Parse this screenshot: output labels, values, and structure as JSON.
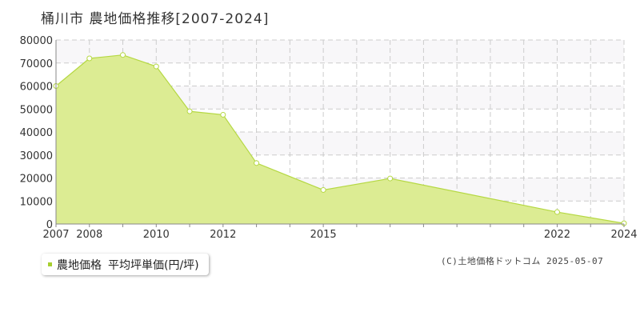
{
  "title": "桶川市 農地価格推移[2007-2024]",
  "legend": {
    "series_label": "農地価格",
    "unit_label": "平均坪単価(円/坪)"
  },
  "copyright": "(C)土地価格ドットコム 2025-05-07",
  "colors": {
    "fill": "#dcec93",
    "line": "#b5d843",
    "grid": "#cccccc",
    "band": "#f8f7f9",
    "marker": "#a6cf2f"
  },
  "chart_data": {
    "type": "area",
    "title": "桶川市 農地価格推移[2007-2024]",
    "xlabel": "",
    "ylabel": "",
    "xlim": [
      2007,
      2024
    ],
    "ylim": [
      0,
      80000
    ],
    "x_tick_labels": [
      "2007",
      "2008",
      "2010",
      "2012",
      "2015",
      "2022",
      "2024"
    ],
    "y_tick_labels": [
      "0",
      "10000",
      "20000",
      "30000",
      "40000",
      "50000",
      "60000",
      "70000",
      "80000"
    ],
    "grid": true,
    "series": [
      {
        "name": "農地価格",
        "x": [
          2007,
          2008,
          2009,
          2010,
          2011,
          2012,
          2013,
          2015,
          2017,
          2022,
          2024
        ],
        "values": [
          60000,
          72000,
          73500,
          68500,
          49000,
          47500,
          26500,
          14800,
          19800,
          5200,
          300
        ]
      }
    ]
  }
}
